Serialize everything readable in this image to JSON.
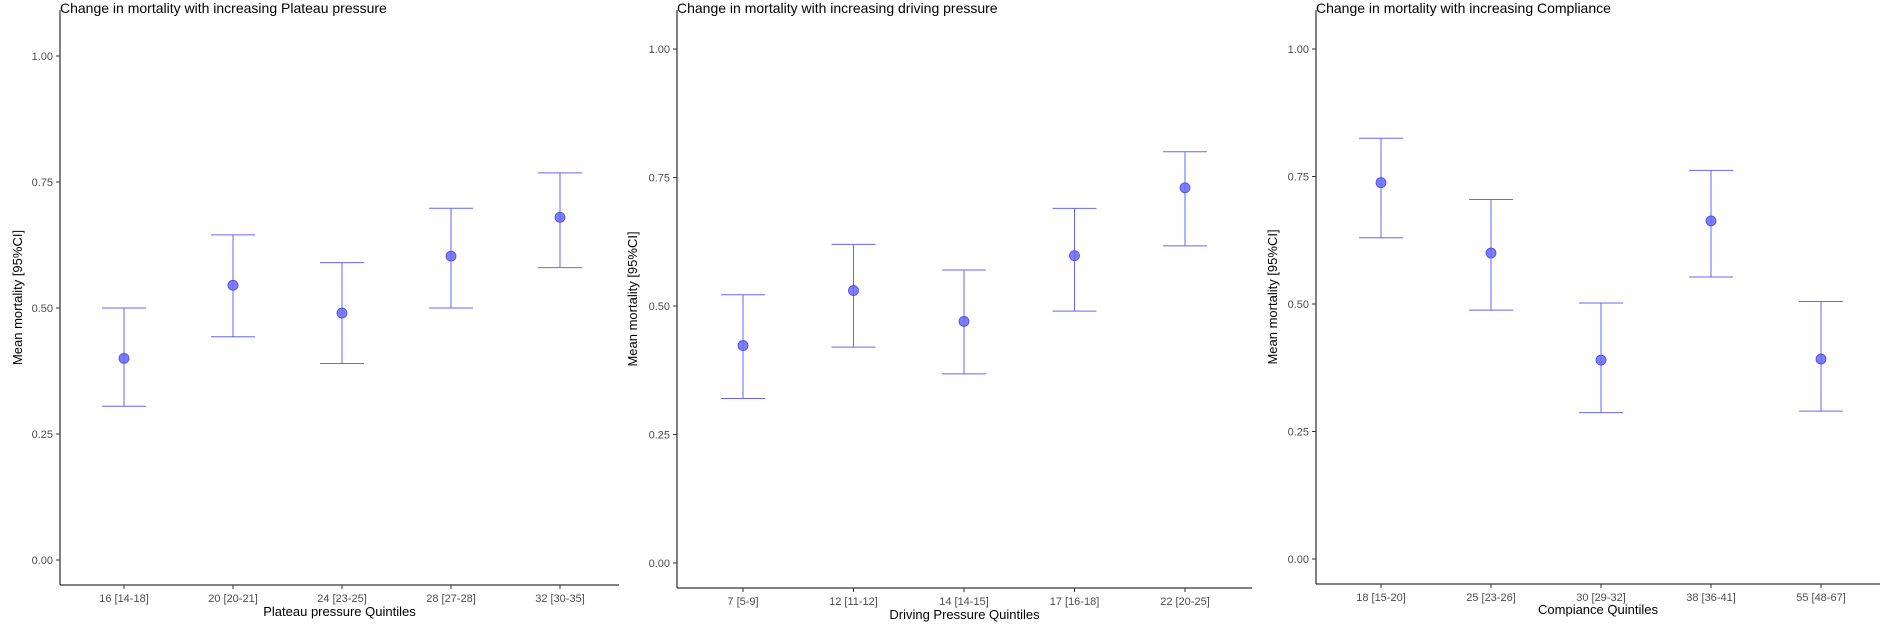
{
  "chart_data": [
    {
      "type": "scatter",
      "title": "Change in mortality with increasing Plateau pressure",
      "xlabel": "Plateau pressure Quintiles",
      "ylabel": "Mean mortality [95%CI]",
      "categories": [
        "16 [14-18]",
        "20 [20-21]",
        "24 [23-25]",
        "28 [27-28]",
        "32 [30-35]"
      ],
      "series": [
        {
          "values": [
            0.4,
            0.545,
            0.49,
            0.603,
            0.68
          ],
          "lower": [
            0.305,
            0.443,
            0.39,
            0.5,
            0.58
          ],
          "upper": [
            0.5,
            0.645,
            0.59,
            0.698,
            0.768
          ]
        }
      ],
      "ylim": [
        0,
        1
      ],
      "yticks": [
        "0.00",
        "0.25",
        "0.50",
        "0.75",
        "1.00"
      ],
      "grid": false,
      "color": "#6666ff"
    },
    {
      "type": "scatter",
      "title": "Change in mortality with increasing driving pressure",
      "xlabel": "Driving Pressure Quintiles",
      "ylabel": "Mean mortality [95%CI]",
      "categories": [
        "7 [5-9]",
        "12 [11-12]",
        "14 [14-15]",
        "17 [16-18]",
        "22 [20-25]"
      ],
      "series": [
        {
          "values": [
            0.423,
            0.53,
            0.47,
            0.598,
            0.73
          ],
          "lower": [
            0.32,
            0.42,
            0.368,
            0.49,
            0.617
          ],
          "upper": [
            0.522,
            0.62,
            0.57,
            0.69,
            0.8
          ]
        }
      ],
      "ylim": [
        0,
        1
      ],
      "yticks": [
        "0.00",
        "0.25",
        "0.50",
        "0.75",
        "1.00"
      ],
      "grid": false,
      "color": "#6666ff"
    },
    {
      "type": "scatter",
      "title": "Change in mortality with increasing Compliance",
      "xlabel": "Compiance Quintiles",
      "ylabel": "Mean mortality [95%CI]",
      "categories": [
        "18 [15-20]",
        "25 [23-26]",
        "30 [29-32]",
        "38 [36-41]",
        "55 [48-67]"
      ],
      "series": [
        {
          "values": [
            0.738,
            0.6,
            0.39,
            0.663,
            0.392
          ],
          "lower": [
            0.63,
            0.488,
            0.287,
            0.553,
            0.29
          ],
          "upper": [
            0.825,
            0.705,
            0.502,
            0.762,
            0.505
          ]
        }
      ],
      "ylim": [
        0,
        1
      ],
      "yticks": [
        "0.00",
        "0.25",
        "0.50",
        "0.75",
        "1.00"
      ],
      "grid": false,
      "color": "#6666ff"
    }
  ]
}
